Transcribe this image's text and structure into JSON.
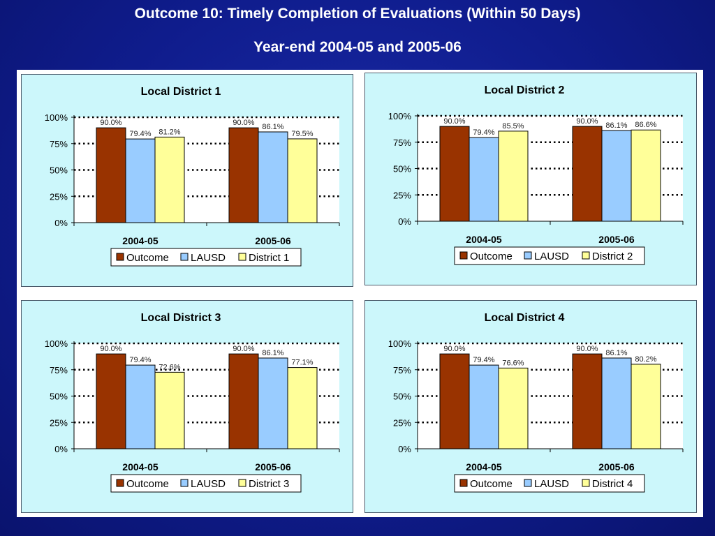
{
  "slide": {
    "title": "Outcome 10: Timely Completion of Evaluations (Within 50 Days)",
    "subtitle": "Year-end 2004-05 and 2005-06"
  },
  "colors": {
    "Outcome": "#993300",
    "LAUSD": "#99ccff",
    "District": "#ffff99",
    "panel_bg": "#ccf7fb",
    "slide_bg": "#0f1c8c"
  },
  "chart_data": [
    {
      "type": "bar",
      "title": "Local District 1",
      "categories": [
        "2004-05",
        "2005-06"
      ],
      "series": [
        {
          "name": "Outcome",
          "values": [
            90.0,
            90.0
          ],
          "labels": [
            "90.0%",
            "90.0%"
          ]
        },
        {
          "name": "LAUSD",
          "values": [
            79.4,
            86.1
          ],
          "labels": [
            "79.4%",
            "86.1%"
          ]
        },
        {
          "name": "District 1",
          "values": [
            81.2,
            79.5
          ],
          "labels": [
            "81.2%",
            "79.5%"
          ]
        }
      ],
      "yticks": [
        "0%",
        "25%",
        "50%",
        "75%",
        "100%"
      ],
      "ylim": [
        0,
        100
      ],
      "grid": "dotted horizontal",
      "legend": "bottom"
    },
    {
      "type": "bar",
      "title": "Local District 2",
      "categories": [
        "2004-05",
        "2005-06"
      ],
      "series": [
        {
          "name": "Outcome",
          "values": [
            90.0,
            90.0
          ],
          "labels": [
            "90.0%",
            "90.0%"
          ]
        },
        {
          "name": "LAUSD",
          "values": [
            79.4,
            86.1
          ],
          "labels": [
            "79.4%",
            "86.1%"
          ]
        },
        {
          "name": "District 2",
          "values": [
            85.5,
            86.6
          ],
          "labels": [
            "85.5%",
            "86.6%"
          ]
        }
      ],
      "yticks": [
        "0%",
        "25%",
        "50%",
        "75%",
        "100%"
      ],
      "ylim": [
        0,
        100
      ],
      "grid": "dotted horizontal",
      "legend": "bottom"
    },
    {
      "type": "bar",
      "title": "Local District 3",
      "categories": [
        "2004-05",
        "2005-06"
      ],
      "series": [
        {
          "name": "Outcome",
          "values": [
            90.0,
            90.0
          ],
          "labels": [
            "90.0%",
            "90.0%"
          ]
        },
        {
          "name": "LAUSD",
          "values": [
            79.4,
            86.1
          ],
          "labels": [
            "79.4%",
            "86.1%"
          ]
        },
        {
          "name": "District 3",
          "values": [
            72.6,
            77.1
          ],
          "labels": [
            "72.6%",
            "77.1%"
          ]
        }
      ],
      "yticks": [
        "0%",
        "25%",
        "50%",
        "75%",
        "100%"
      ],
      "ylim": [
        0,
        100
      ],
      "grid": "dotted horizontal",
      "legend": "bottom"
    },
    {
      "type": "bar",
      "title": "Local District 4",
      "categories": [
        "2004-05",
        "2005-06"
      ],
      "series": [
        {
          "name": "Outcome",
          "values": [
            90.0,
            90.0
          ],
          "labels": [
            "90.0%",
            "90.0%"
          ]
        },
        {
          "name": "LAUSD",
          "values": [
            79.4,
            86.1
          ],
          "labels": [
            "79.4%",
            "86.1%"
          ]
        },
        {
          "name": "District 4",
          "values": [
            76.6,
            80.2
          ],
          "labels": [
            "76.6%",
            "80.2%"
          ]
        }
      ],
      "yticks": [
        "0%",
        "25%",
        "50%",
        "75%",
        "100%"
      ],
      "ylim": [
        0,
        100
      ],
      "grid": "dotted horizontal",
      "legend": "bottom"
    }
  ]
}
